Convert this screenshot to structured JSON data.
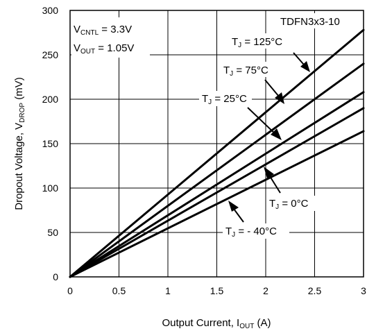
{
  "chart_data": {
    "type": "line",
    "title": "",
    "xlabel": {
      "main": "Output Current, I",
      "sub": "OUT",
      "unit": " (A)"
    },
    "ylabel": {
      "main": "Dropout Voltage, V",
      "sub": "DROP",
      "unit": " (mV)"
    },
    "xlim": [
      0,
      3
    ],
    "ylim": [
      0,
      300
    ],
    "x_ticks": [
      "0",
      "0.5",
      "1",
      "1.5",
      "2",
      "2.5",
      "3"
    ],
    "y_ticks": [
      "0",
      "50",
      "100",
      "150",
      "200",
      "250",
      "300"
    ],
    "grid": true,
    "series": [
      {
        "name": "TJ = 125°C",
        "x": [
          0,
          3
        ],
        "y": [
          0,
          278
        ]
      },
      {
        "name": "TJ = 75°C",
        "x": [
          0,
          3
        ],
        "y": [
          0,
          240
        ]
      },
      {
        "name": "TJ = 25°C",
        "x": [
          0,
          3
        ],
        "y": [
          0,
          208
        ]
      },
      {
        "name": "TJ = 0°C",
        "x": [
          0,
          3
        ],
        "y": [
          0,
          190
        ]
      },
      {
        "name": "TJ = - 40°C",
        "x": [
          0,
          3
        ],
        "y": [
          0,
          164
        ]
      }
    ],
    "annotations": {
      "conditions": [
        {
          "main": "V",
          "sub": "CNTL",
          "rest": " = 3.3V"
        },
        {
          "main": "V",
          "sub": "OUT",
          "rest": " = 1.05V"
        }
      ],
      "package": "TDFN3x3-10",
      "series_labels": [
        {
          "main": "T",
          "sub": "J",
          "rest": " = 125°C"
        },
        {
          "main": "T",
          "sub": "J",
          "rest": " = 75°C"
        },
        {
          "main": "T",
          "sub": "J",
          "rest": " = 25°C"
        },
        {
          "main": "T",
          "sub": "J",
          "rest": " = 0°C"
        },
        {
          "main": "T",
          "sub": "J",
          "rest": " = - 40°C"
        }
      ]
    }
  }
}
